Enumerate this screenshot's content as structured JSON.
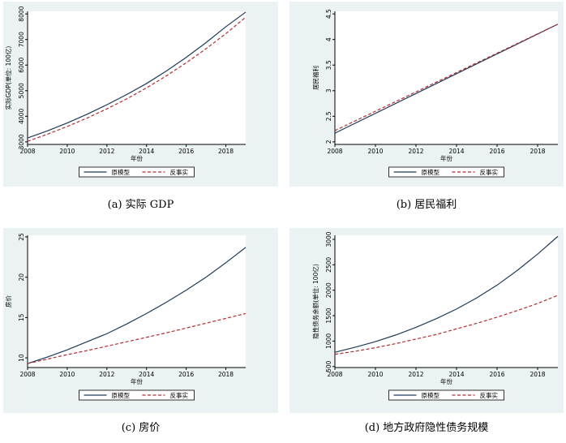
{
  "colors": {
    "model": "#1f3b5a",
    "counterfactual": "#b52a2f",
    "panel_background": "#eaf2f3"
  },
  "chart_data": [
    {
      "type": "line",
      "caption": "(a) 实际 GDP",
      "xlabel": "年份",
      "ylabel": "实际GDP(单位: 100亿)",
      "xlim": [
        2008,
        2019
      ],
      "ylim": [
        2900,
        8100
      ],
      "xticks": [
        2008,
        2010,
        2012,
        2014,
        2016,
        2018
      ],
      "yticks": [
        3000,
        4000,
        5000,
        6000,
        7000,
        8000
      ],
      "grid": false,
      "legend_position": "bottom",
      "series": [
        {
          "name": "原模型",
          "style": "solid",
          "x": [
            2008,
            2009,
            2010,
            2011,
            2012,
            2013,
            2014,
            2015,
            2016,
            2017,
            2018,
            2019
          ],
          "y": [
            3150,
            3430,
            3740,
            4080,
            4450,
            4850,
            5280,
            5770,
            6300,
            6880,
            7500,
            8070
          ]
        },
        {
          "name": "反事实",
          "style": "dashed",
          "x": [
            2008,
            2009,
            2010,
            2011,
            2012,
            2013,
            2014,
            2015,
            2016,
            2017,
            2018,
            2019
          ],
          "y": [
            3020,
            3300,
            3600,
            3930,
            4290,
            4680,
            5110,
            5580,
            6090,
            6640,
            7230,
            7870
          ]
        }
      ]
    },
    {
      "type": "line",
      "caption": "(b) 居民福利",
      "xlabel": "年份",
      "ylabel": "居民福利",
      "xlim": [
        2008,
        2019
      ],
      "ylim": [
        1.95,
        4.55
      ],
      "xticks": [
        2008,
        2010,
        2012,
        2014,
        2016,
        2018
      ],
      "yticks": [
        2,
        2.5,
        3,
        3.5,
        4,
        4.5
      ],
      "grid": false,
      "legend_position": "bottom",
      "series": [
        {
          "name": "原模型",
          "style": "solid",
          "x": [
            2008,
            2019
          ],
          "y": [
            2.17,
            4.3
          ]
        },
        {
          "name": "反事实",
          "style": "dashed",
          "x": [
            2008,
            2019
          ],
          "y": [
            2.22,
            4.3
          ]
        }
      ]
    },
    {
      "type": "line",
      "caption": "(c) 房价",
      "xlabel": "年份",
      "ylabel": "房价",
      "xlim": [
        2008,
        2019
      ],
      "ylim": [
        8.8,
        25.2
      ],
      "xticks": [
        2008,
        2010,
        2012,
        2014,
        2016,
        2018
      ],
      "yticks": [
        10,
        15,
        20,
        25
      ],
      "grid": false,
      "legend_position": "bottom",
      "series": [
        {
          "name": "原模型",
          "style": "solid",
          "x": [
            2008,
            2009,
            2010,
            2011,
            2012,
            2013,
            2014,
            2015,
            2016,
            2017,
            2018,
            2019
          ],
          "y": [
            9.3,
            10.1,
            11.0,
            12.0,
            13.0,
            14.2,
            15.5,
            16.9,
            18.4,
            20.0,
            21.8,
            23.7
          ]
        },
        {
          "name": "反事实",
          "style": "dashed",
          "x": [
            2008,
            2009,
            2010,
            2011,
            2012,
            2013,
            2014,
            2015,
            2016,
            2017,
            2018,
            2019
          ],
          "y": [
            9.3,
            9.85,
            10.4,
            10.9,
            11.45,
            12.0,
            12.55,
            13.1,
            13.7,
            14.3,
            14.9,
            15.5
          ]
        }
      ]
    },
    {
      "type": "line",
      "caption": "(d) 地方政府隐性债务规模",
      "xlabel": "年份",
      "ylabel": "隐性债务余额(单位: 100亿)",
      "xlim": [
        2008,
        2019
      ],
      "ylim": [
        480,
        3080
      ],
      "xticks": [
        2008,
        2010,
        2012,
        2014,
        2016,
        2018
      ],
      "yticks": [
        500,
        1000,
        1500,
        2000,
        2500,
        3000
      ],
      "grid": false,
      "legend_position": "bottom",
      "series": [
        {
          "name": "原模型",
          "style": "solid",
          "x": [
            2008,
            2009,
            2010,
            2011,
            2012,
            2013,
            2014,
            2015,
            2016,
            2017,
            2018,
            2019
          ],
          "y": [
            780,
            880,
            990,
            1120,
            1270,
            1440,
            1630,
            1850,
            2100,
            2390,
            2710,
            3060
          ]
        },
        {
          "name": "反事实",
          "style": "dashed",
          "x": [
            2008,
            2009,
            2010,
            2011,
            2012,
            2013,
            2014,
            2015,
            2016,
            2017,
            2018,
            2019
          ],
          "y": [
            740,
            800,
            870,
            950,
            1040,
            1130,
            1240,
            1350,
            1470,
            1600,
            1740,
            1900
          ]
        }
      ]
    }
  ]
}
